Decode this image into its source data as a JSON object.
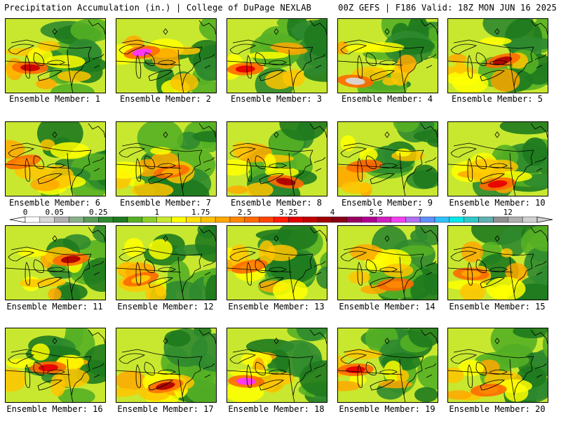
{
  "header": {
    "left": "Precipitation Accumulation (in.) | College of DuPage NEXLAB",
    "right": "00Z GEFS | F186 Valid: 18Z MON JUN 16 2025"
  },
  "members": [
    {
      "label": "Ensemble Member: 1",
      "max_color": "#cc0000"
    },
    {
      "label": "Ensemble Member: 2",
      "max_color": "#ff33ff"
    },
    {
      "label": "Ensemble Member: 3",
      "max_color": "#e80000"
    },
    {
      "label": "Ensemble Member: 4",
      "max_color": "#d8d8d8"
    },
    {
      "label": "Ensemble Member: 5",
      "max_color": "#b00000"
    },
    {
      "label": "Ensemble Member: 6",
      "max_color": "#ff8800"
    },
    {
      "label": "Ensemble Member: 7",
      "max_color": "#ffaa00"
    },
    {
      "label": "Ensemble Member: 8",
      "max_color": "#b00000"
    },
    {
      "label": "Ensemble Member: 9",
      "max_color": "#ff6600"
    },
    {
      "label": "Ensemble Member: 10",
      "max_color": "#e80000"
    },
    {
      "label": "Ensemble Member: 11",
      "max_color": "#b00000"
    },
    {
      "label": "Ensemble Member: 12",
      "max_color": "#ffcc00"
    },
    {
      "label": "Ensemble Member: 13",
      "max_color": "#ff8800"
    },
    {
      "label": "Ensemble Member: 14",
      "max_color": "#ff8800"
    },
    {
      "label": "Ensemble Member: 15",
      "max_color": "#ffaa00"
    },
    {
      "label": "Ensemble Member: 16",
      "max_color": "#e80000"
    },
    {
      "label": "Ensemble Member: 17",
      "max_color": "#b00000"
    },
    {
      "label": "Ensemble Member: 18",
      "max_color": "#ff33ff"
    },
    {
      "label": "Ensemble Member: 19",
      "max_color": "#e80000"
    },
    {
      "label": "Ensemble Member: 20",
      "max_color": "#ff8800"
    }
  ],
  "colorbar": {
    "labels": [
      {
        "text": "0",
        "bin": 0
      },
      {
        "text": "0.05",
        "bin": 2
      },
      {
        "text": "0.25",
        "bin": 5
      },
      {
        "text": "1",
        "bin": 9
      },
      {
        "text": "1.75",
        "bin": 12
      },
      {
        "text": "2.5",
        "bin": 15
      },
      {
        "text": "3.25",
        "bin": 18
      },
      {
        "text": "4",
        "bin": 21
      },
      {
        "text": "5.5",
        "bin": 24
      },
      {
        "text": "7",
        "bin": 27
      },
      {
        "text": "9",
        "bin": 30
      },
      {
        "text": "12",
        "bin": 33
      }
    ],
    "colors": [
      "#ffffff",
      "#d8d8d8",
      "#b0b0b0",
      "#8ab08a",
      "#5a9a5a",
      "#2f8a2f",
      "#1e7a1e",
      "#55b025",
      "#8ccf2a",
      "#c8e830",
      "#ffff00",
      "#ffe000",
      "#ffc400",
      "#ffa800",
      "#ff8800",
      "#ff6a00",
      "#ff4400",
      "#ff1a00",
      "#e00000",
      "#c00000",
      "#a00000",
      "#880018",
      "#980060",
      "#b00090",
      "#d020c0",
      "#f040f0",
      "#b070f0",
      "#6090ff",
      "#30c0ff",
      "#00e8e8",
      "#30c8c8",
      "#60b0b0",
      "#909090",
      "#b0b0b0",
      "#d0d0d0"
    ]
  }
}
